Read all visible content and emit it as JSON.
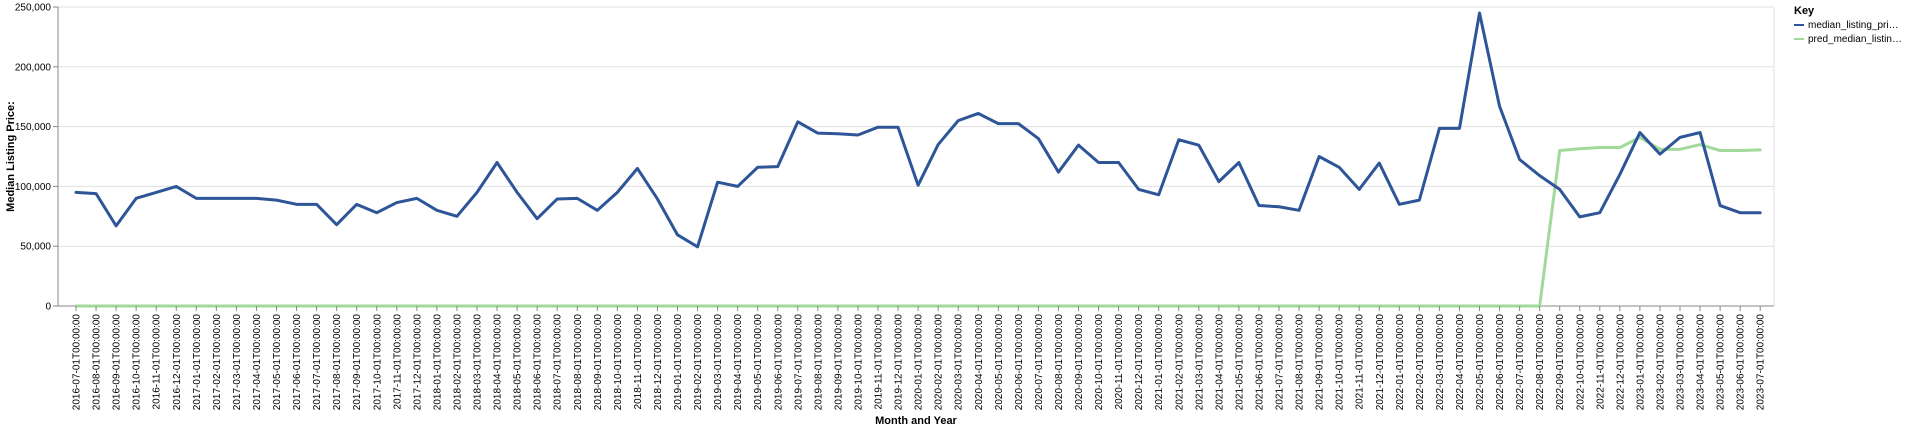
{
  "chart_data": {
    "type": "line",
    "xlabel": "Month and Year",
    "ylabel": "Median Listing Price:",
    "ylim": [
      0,
      250000
    ],
    "yticks": [
      "0",
      "50,000",
      "100,000",
      "150,000",
      "200,000",
      "250,000"
    ],
    "yticks_values": [
      0,
      50000,
      100000,
      150000,
      200000,
      250000
    ],
    "grid": true,
    "legend": {
      "title": "Key",
      "placement": "top-right"
    },
    "colors": {
      "series_0": "#2d5597",
      "series_1": "#a1d99b",
      "grid": "#e0e0e0",
      "axis": "#888888"
    },
    "x": [
      "2016-07-01T00:00:00",
      "2016-08-01T00:00:00",
      "2016-09-01T00:00:00",
      "2016-10-01T00:00:00",
      "2016-11-01T00:00:00",
      "2016-12-01T00:00:00",
      "2017-01-01T00:00:00",
      "2017-02-01T00:00:00",
      "2017-03-01T00:00:00",
      "2017-04-01T00:00:00",
      "2017-05-01T00:00:00",
      "2017-06-01T00:00:00",
      "2017-07-01T00:00:00",
      "2017-08-01T00:00:00",
      "2017-09-01T00:00:00",
      "2017-10-01T00:00:00",
      "2017-11-01T00:00:00",
      "2017-12-01T00:00:00",
      "2018-01-01T00:00:00",
      "2018-02-01T00:00:00",
      "2018-03-01T00:00:00",
      "2018-04-01T00:00:00",
      "2018-05-01T00:00:00",
      "2018-06-01T00:00:00",
      "2018-07-01T00:00:00",
      "2018-08-01T00:00:00",
      "2018-09-01T00:00:00",
      "2018-10-01T00:00:00",
      "2018-11-01T00:00:00",
      "2018-12-01T00:00:00",
      "2019-01-01T00:00:00",
      "2019-02-01T00:00:00",
      "2019-03-01T00:00:00",
      "2019-04-01T00:00:00",
      "2019-05-01T00:00:00",
      "2019-06-01T00:00:00",
      "2019-07-01T00:00:00",
      "2019-08-01T00:00:00",
      "2019-09-01T00:00:00",
      "2019-10-01T00:00:00",
      "2019-11-01T00:00:00",
      "2019-12-01T00:00:00",
      "2020-01-01T00:00:00",
      "2020-02-01T00:00:00",
      "2020-03-01T00:00:00",
      "2020-04-01T00:00:00",
      "2020-05-01T00:00:00",
      "2020-06-01T00:00:00",
      "2020-07-01T00:00:00",
      "2020-08-01T00:00:00",
      "2020-09-01T00:00:00",
      "2020-10-01T00:00:00",
      "2020-11-01T00:00:00",
      "2020-12-01T00:00:00",
      "2021-01-01T00:00:00",
      "2021-02-01T00:00:00",
      "2021-03-01T00:00:00",
      "2021-04-01T00:00:00",
      "2021-05-01T00:00:00",
      "2021-06-01T00:00:00",
      "2021-07-01T00:00:00",
      "2021-08-01T00:00:00",
      "2021-09-01T00:00:00",
      "2021-10-01T00:00:00",
      "2021-11-01T00:00:00",
      "2021-12-01T00:00:00",
      "2022-01-01T00:00:00",
      "2022-02-01T00:00:00",
      "2022-03-01T00:00:00",
      "2022-04-01T00:00:00",
      "2022-05-01T00:00:00",
      "2022-06-01T00:00:00",
      "2022-07-01T00:00:00",
      "2022-08-01T00:00:00",
      "2022-09-01T00:00:00",
      "2022-10-01T00:00:00",
      "2022-11-01T00:00:00",
      "2022-12-01T00:00:00",
      "2023-01-01T00:00:00",
      "2023-02-01T00:00:00",
      "2023-03-01T00:00:00",
      "2023-04-01T00:00:00",
      "2023-05-01T00:00:00",
      "2023-06-01T00:00:00",
      "2023-07-01T00:00:00"
    ],
    "series": [
      {
        "name": "median_listing_pri…",
        "values": [
          95000,
          94000,
          67000,
          90000,
          95000,
          100000,
          90000,
          90000,
          90000,
          90000,
          88500,
          85000,
          85000,
          68000,
          85000,
          78000,
          86500,
          90000,
          80000,
          75000,
          95000,
          120000,
          95000,
          73000,
          89500,
          90000,
          80000,
          95000,
          115000,
          89500,
          59500,
          49500,
          103500,
          100000,
          116000,
          116500,
          154000,
          144500,
          144000,
          143000,
          149500,
          149500,
          101000,
          135000,
          155000,
          161000,
          152500,
          152500,
          140000,
          112000,
          134500,
          120000,
          120000,
          97500,
          93000,
          139000,
          134500,
          104000,
          120000,
          84000,
          83000,
          80000,
          125000,
          116000,
          97500,
          119500,
          85000,
          88500,
          148500,
          148500,
          245000,
          167000,
          122500,
          109000,
          97500,
          74500,
          78000,
          110000,
          145000,
          127000,
          141000,
          145000,
          84000,
          78000,
          78000
        ]
      },
      {
        "name": "pred_median_listin…",
        "values": [
          0,
          0,
          0,
          0,
          0,
          0,
          0,
          0,
          0,
          0,
          0,
          0,
          0,
          0,
          0,
          0,
          0,
          0,
          0,
          0,
          0,
          0,
          0,
          0,
          0,
          0,
          0,
          0,
          0,
          0,
          0,
          0,
          0,
          0,
          0,
          0,
          0,
          0,
          0,
          0,
          0,
          0,
          0,
          0,
          0,
          0,
          0,
          0,
          0,
          0,
          0,
          0,
          0,
          0,
          0,
          0,
          0,
          0,
          0,
          0,
          0,
          0,
          0,
          0,
          0,
          0,
          0,
          0,
          0,
          0,
          0,
          0,
          0,
          0,
          130000,
          131500,
          132500,
          132500,
          141000,
          131000,
          131000,
          135000,
          130000,
          130000,
          130500
        ]
      }
    ]
  }
}
